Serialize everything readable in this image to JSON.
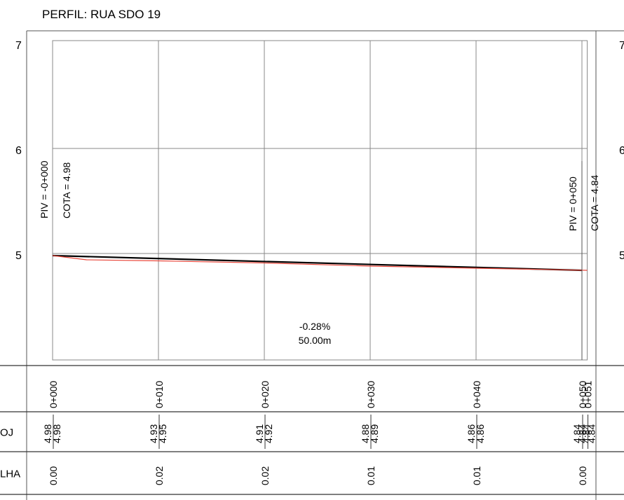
{
  "chart_data": {
    "type": "line",
    "title": "PERFIL: RUA SDO 19",
    "xlabel": "",
    "ylabel": "",
    "xlim": [
      0,
      50.5
    ],
    "ylim": [
      4.16,
      7.0
    ],
    "x_ticks": [
      "0+000",
      "0+010",
      "0+020",
      "0+030",
      "0+040",
      "0+050",
      "0+051"
    ],
    "y_tick_labels": [
      "7",
      "6",
      "5"
    ],
    "right_y_tick_labels": [
      "7",
      "6",
      "5"
    ],
    "grid": true,
    "series": [
      {
        "name": "",
        "color": "#000000",
        "x": [
          0,
          50
        ],
        "y": [
          4.98,
          4.84
        ]
      },
      {
        "name": "",
        "color": "#e8463a",
        "x": [
          0,
          3.2,
          10,
          20,
          30,
          40,
          50.5
        ],
        "y": [
          4.98,
          4.94,
          4.93,
          4.91,
          4.88,
          4.86,
          4.84
        ]
      }
    ],
    "annotations": {
      "piv_start": "PIV = -0+000",
      "cota_start": "COTA = 4.98",
      "piv_end": "PIV = 0+050",
      "cota_end": "COTA = 4.84",
      "slope": "-0.28%",
      "length": "50.00m"
    },
    "table": {
      "row_labels": [
        "",
        "OJ",
        "LHA"
      ],
      "stations": [
        {
          "label": "0+000",
          "x": 0,
          "proj": "4.98",
          "terr": "4.98",
          "diff": "0.00"
        },
        {
          "label": "0+010",
          "x": 10,
          "proj": "4.93",
          "terr": "4.95",
          "diff": "0.02"
        },
        {
          "label": "0+020",
          "x": 20,
          "proj": "4.91",
          "terr": "4.92",
          "diff": "0.02"
        },
        {
          "label": "0+030",
          "x": 30,
          "proj": "4.88",
          "terr": "4.89",
          "diff": "0.01"
        },
        {
          "label": "0+040",
          "x": 40,
          "proj": "4.86",
          "terr": "4.86",
          "diff": "0.01"
        },
        {
          "label": "0+050",
          "x": 50,
          "proj": "4.84",
          "terr": "4.84",
          "diff": "0.00"
        },
        {
          "label": "0+051",
          "x": 50.5,
          "proj": "4.84",
          "terr": "4.84",
          "diff": ""
        }
      ]
    }
  }
}
